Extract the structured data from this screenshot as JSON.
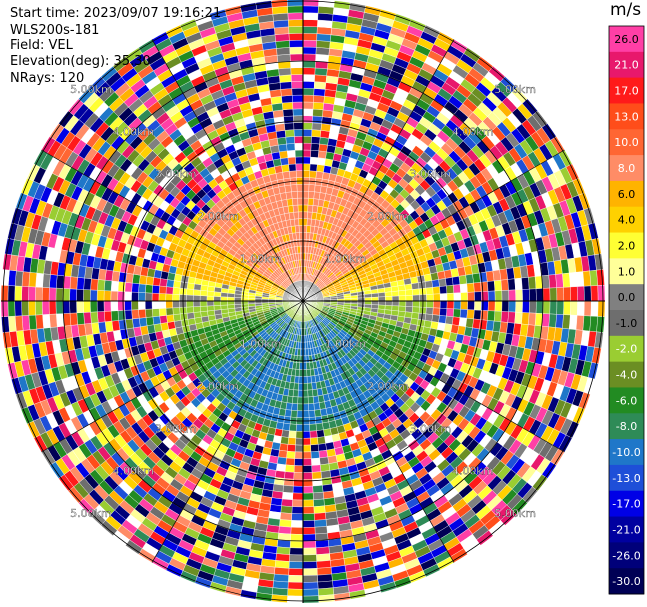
{
  "header": {
    "start_time": "Start time: 2023/09/07 19:16:21",
    "instrument": "WLS200s-181",
    "field": "Field: VEL",
    "elevation": "Elevation(deg): 35.30",
    "nrays": "NRays: 120"
  },
  "colorbar": {
    "unit": "m/s",
    "levels": [
      "26.0",
      "21.0",
      "17.0",
      "13.0",
      "10.0",
      "8.0",
      "6.0",
      "4.0",
      "2.0",
      "1.0",
      "0.0",
      "-1.0",
      "-2.0",
      "-4.0",
      "-6.0",
      "-8.0",
      "-10.0",
      "-13.0",
      "-17.0",
      "-21.0",
      "-26.0",
      "-30.0"
    ],
    "colors": [
      "#ff3fa6",
      "#e8186c",
      "#ff1a1a",
      "#ff4d1a",
      "#ff6633",
      "#ff8c66",
      "#ffb300",
      "#ffd100",
      "#ffff33",
      "#ffff99",
      "#808080",
      "#6e6e6e",
      "#9acd32",
      "#6b8e23",
      "#228b22",
      "#2e8b57",
      "#1f77c9",
      "#1e4fd8",
      "#0000e6",
      "#0000a0",
      "#00007a",
      "#000055"
    ]
  },
  "range_rings": {
    "labels": [
      "1.00km",
      "2.00km",
      "3.00km",
      "4.00km",
      "5.00km"
    ]
  }
}
